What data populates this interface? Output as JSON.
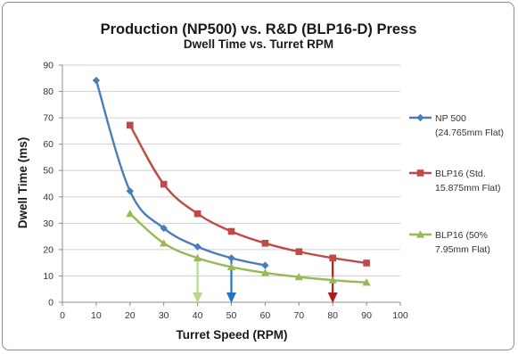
{
  "chart_data": {
    "type": "line",
    "title": "Production (NP500) vs. R&D (BLP16-D) Press",
    "subtitle": "Dwell Time vs. Turret RPM",
    "xlabel": "Turret Speed (RPM)",
    "ylabel": "Dwell Time (ms)",
    "xlim": [
      0,
      100
    ],
    "ylim": [
      0,
      90
    ],
    "xticks": [
      0,
      10,
      20,
      30,
      40,
      50,
      60,
      70,
      80,
      90,
      100
    ],
    "yticks": [
      0,
      10,
      20,
      30,
      40,
      50,
      60,
      70,
      80,
      90
    ],
    "grid": "horizontal",
    "legend_position": "right",
    "series": [
      {
        "name_lines": [
          "NP 500",
          "(24.765mm Flat)"
        ],
        "color": "#4a7ebb",
        "marker": "diamond",
        "x": [
          10,
          20,
          30,
          40,
          50,
          60
        ],
        "y": [
          84.2,
          42.2,
          28.1,
          21.1,
          16.8,
          14.0
        ]
      },
      {
        "name_lines": [
          "BLP16 (Std.",
          "15.875mm Flat)"
        ],
        "color": "#be4b48",
        "marker": "square",
        "x": [
          20,
          30,
          40,
          50,
          60,
          70,
          80,
          90
        ],
        "y": [
          67.2,
          44.8,
          33.6,
          26.9,
          22.4,
          19.2,
          16.8,
          14.9
        ]
      },
      {
        "name_lines": [
          "BLP16 (50%",
          "7.95mm Flat)"
        ],
        "color": "#98b954",
        "marker": "triangle",
        "x": [
          20,
          30,
          40,
          50,
          60,
          70,
          80,
          90
        ],
        "y": [
          33.6,
          22.4,
          16.8,
          13.4,
          11.2,
          9.6,
          8.4,
          7.5
        ]
      }
    ],
    "annotations": [
      {
        "type": "arrow",
        "x": 40,
        "from_y": 16.8,
        "to_y": 0,
        "color": "#b8d88a"
      },
      {
        "type": "arrow",
        "x": 50,
        "from_y": 16.8,
        "to_y": 0,
        "color": "#1f74c4"
      },
      {
        "type": "arrow",
        "x": 80,
        "from_y": 16.8,
        "to_y": 0,
        "color": "#b01c1c"
      }
    ]
  }
}
